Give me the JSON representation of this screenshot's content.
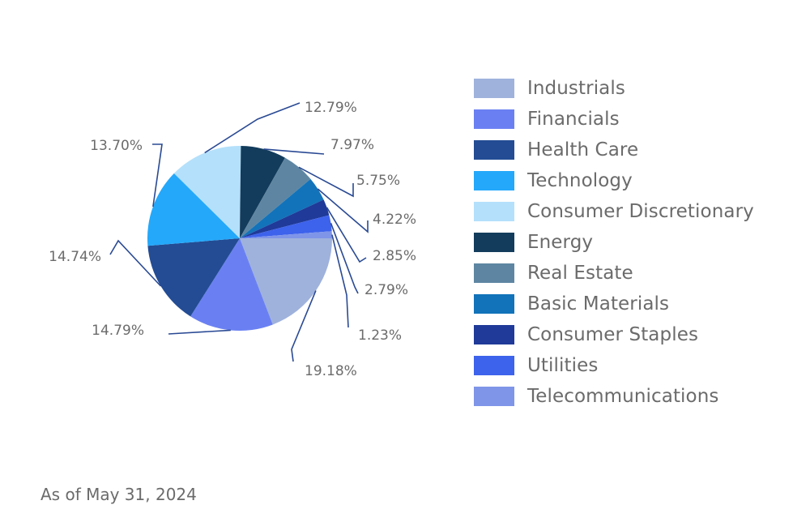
{
  "chart_data": {
    "type": "pie",
    "title": "",
    "slices": [
      {
        "name": "Industrials",
        "value": 19.18,
        "label": "19.18%",
        "color": "#9fb2dc"
      },
      {
        "name": "Financials",
        "value": 14.79,
        "label": "14.79%",
        "color": "#6a80f2"
      },
      {
        "name": "Health Care",
        "value": 14.74,
        "label": "14.74%",
        "color": "#234c94"
      },
      {
        "name": "Technology",
        "value": 13.7,
        "label": "13.70%",
        "color": "#24a8fa"
      },
      {
        "name": "Consumer Discretionary",
        "value": 12.79,
        "label": "12.79%",
        "color": "#b4e0fb"
      },
      {
        "name": "Energy",
        "value": 7.97,
        "label": "7.97%",
        "color": "#133c5c"
      },
      {
        "name": "Real Estate",
        "value": 5.75,
        "label": "5.75%",
        "color": "#5e86a2"
      },
      {
        "name": "Basic Materials",
        "value": 4.22,
        "label": "4.22%",
        "color": "#1273ba"
      },
      {
        "name": "Consumer Staples",
        "value": 2.85,
        "label": "2.85%",
        "color": "#1f3a99"
      },
      {
        "name": "Utilities",
        "value": 2.79,
        "label": "2.79%",
        "color": "#3d62ec"
      },
      {
        "name": "Telecommunications",
        "value": 1.23,
        "label": "1.23%",
        "color": "#7f95e8"
      }
    ],
    "legend_position": "right",
    "leader_line_color": "#2a4a94"
  },
  "footnote": "As of May 31, 2024"
}
